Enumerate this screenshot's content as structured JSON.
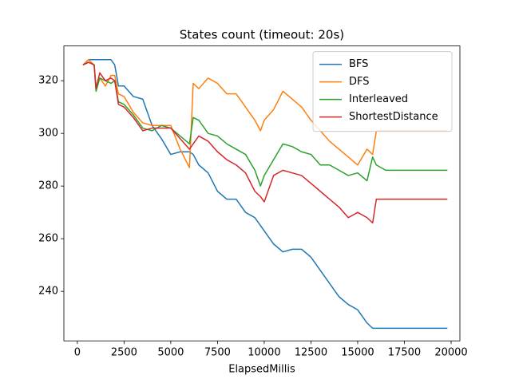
{
  "chart_data": {
    "type": "line",
    "title": "States count (timeout: 20s)",
    "x_label": "ElapsedMillis",
    "x": [
      300,
      600,
      900,
      1000,
      1200,
      1500,
      1800,
      2000,
      2200,
      2500,
      3000,
      3500,
      4000,
      4500,
      5000,
      5500,
      6000,
      6200,
      6500,
      7000,
      7500,
      8000,
      8500,
      9000,
      9500,
      9800,
      10000,
      10500,
      11000,
      11500,
      12000,
      12500,
      13000,
      13500,
      14000,
      14500,
      15000,
      15500,
      15800,
      16000,
      16500,
      17000,
      18000,
      19000,
      19800
    ],
    "series": [
      {
        "name": "BFS",
        "color": "#1f77b4",
        "values": [
          326,
          328,
          328,
          328,
          328,
          328,
          328,
          326,
          318,
          318,
          314,
          313,
          303,
          298,
          292,
          293,
          293,
          292,
          288,
          285,
          278,
          275,
          275,
          270,
          268,
          265,
          263,
          258,
          255,
          256,
          256,
          253,
          248,
          243,
          238,
          235,
          233,
          228,
          226,
          226,
          226,
          226,
          226,
          226,
          226
        ]
      },
      {
        "name": "DFS",
        "color": "#ff7f0e",
        "values": [
          326,
          328,
          326,
          318,
          321,
          318,
          322,
          322,
          315,
          314,
          308,
          304,
          303,
          303,
          303,
          294,
          287,
          319,
          317,
          321,
          319,
          315,
          315,
          310,
          305,
          301,
          305,
          309,
          316,
          313,
          310,
          305,
          301,
          297,
          294,
          291,
          288,
          294,
          292,
          301,
          301,
          301,
          301,
          301,
          301
        ]
      },
      {
        "name": "Interleaved",
        "color": "#2ca02c",
        "values": [
          326,
          327,
          326,
          316,
          321,
          320,
          319,
          320,
          312,
          311,
          307,
          302,
          301,
          303,
          302,
          299,
          296,
          306,
          305,
          300,
          299,
          296,
          294,
          292,
          286,
          280,
          284,
          290,
          296,
          295,
          293,
          292,
          288,
          288,
          286,
          284,
          285,
          282,
          291,
          288,
          286,
          286,
          286,
          286,
          286
        ]
      },
      {
        "name": "ShortestDistance",
        "color": "#d62728",
        "values": [
          326,
          327,
          326,
          317,
          323,
          320,
          321,
          320,
          311,
          310,
          306,
          301,
          302,
          302,
          302,
          298,
          294,
          296,
          299,
          297,
          293,
          290,
          288,
          285,
          278,
          276,
          274,
          284,
          286,
          285,
          284,
          281,
          278,
          275,
          272,
          268,
          270,
          268,
          266,
          275,
          275,
          275,
          275,
          275,
          275
        ]
      }
    ],
    "xlim": [
      -720,
      20470
    ],
    "ylim": [
      221.2,
      333.2
    ],
    "xticks": [
      0,
      2500,
      5000,
      7500,
      10000,
      12500,
      15000,
      17500,
      20000
    ],
    "yticks": [
      240,
      260,
      280,
      300,
      320
    ],
    "legend": "upper right"
  }
}
